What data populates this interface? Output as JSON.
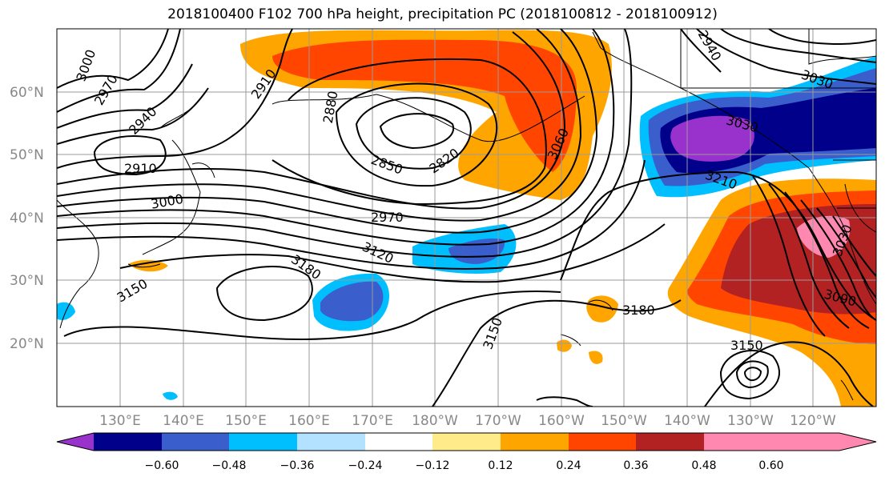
{
  "title": "2018100400 F102 700 hPa height, precipitation PC (2018100812 - 2018100912)",
  "lat_labels": [
    "60°N",
    "50°N",
    "40°N",
    "30°N",
    "20°N"
  ],
  "lon_labels": [
    "130°E",
    "140°E",
    "150°E",
    "160°E",
    "170°E",
    "180°W",
    "170°W",
    "160°W",
    "150°W",
    "140°W",
    "130°W",
    "120°W"
  ],
  "contour_labels": [
    "3000",
    "2970",
    "2940",
    "2910",
    "3000",
    "2910",
    "2880",
    "2850",
    "2820",
    "3060",
    "2970",
    "3120",
    "3180",
    "3150",
    "3150",
    "3180",
    "3150",
    "2940",
    "3030",
    "3030",
    "3210",
    "3030",
    "3090"
  ],
  "colorbar": {
    "ticks": [
      "−0.60",
      "−0.48",
      "−0.36",
      "−0.24",
      "−0.12",
      "0.12",
      "0.24",
      "0.36",
      "0.48",
      "0.60"
    ],
    "colors": [
      "#9932cc",
      "#00008b",
      "#3a5fcd",
      "#00bfff",
      "#b2e2ff",
      "#ffffff",
      "#ffeb8a",
      "#ffa500",
      "#ff4500",
      "#b22222",
      "#ff88b0"
    ]
  }
}
